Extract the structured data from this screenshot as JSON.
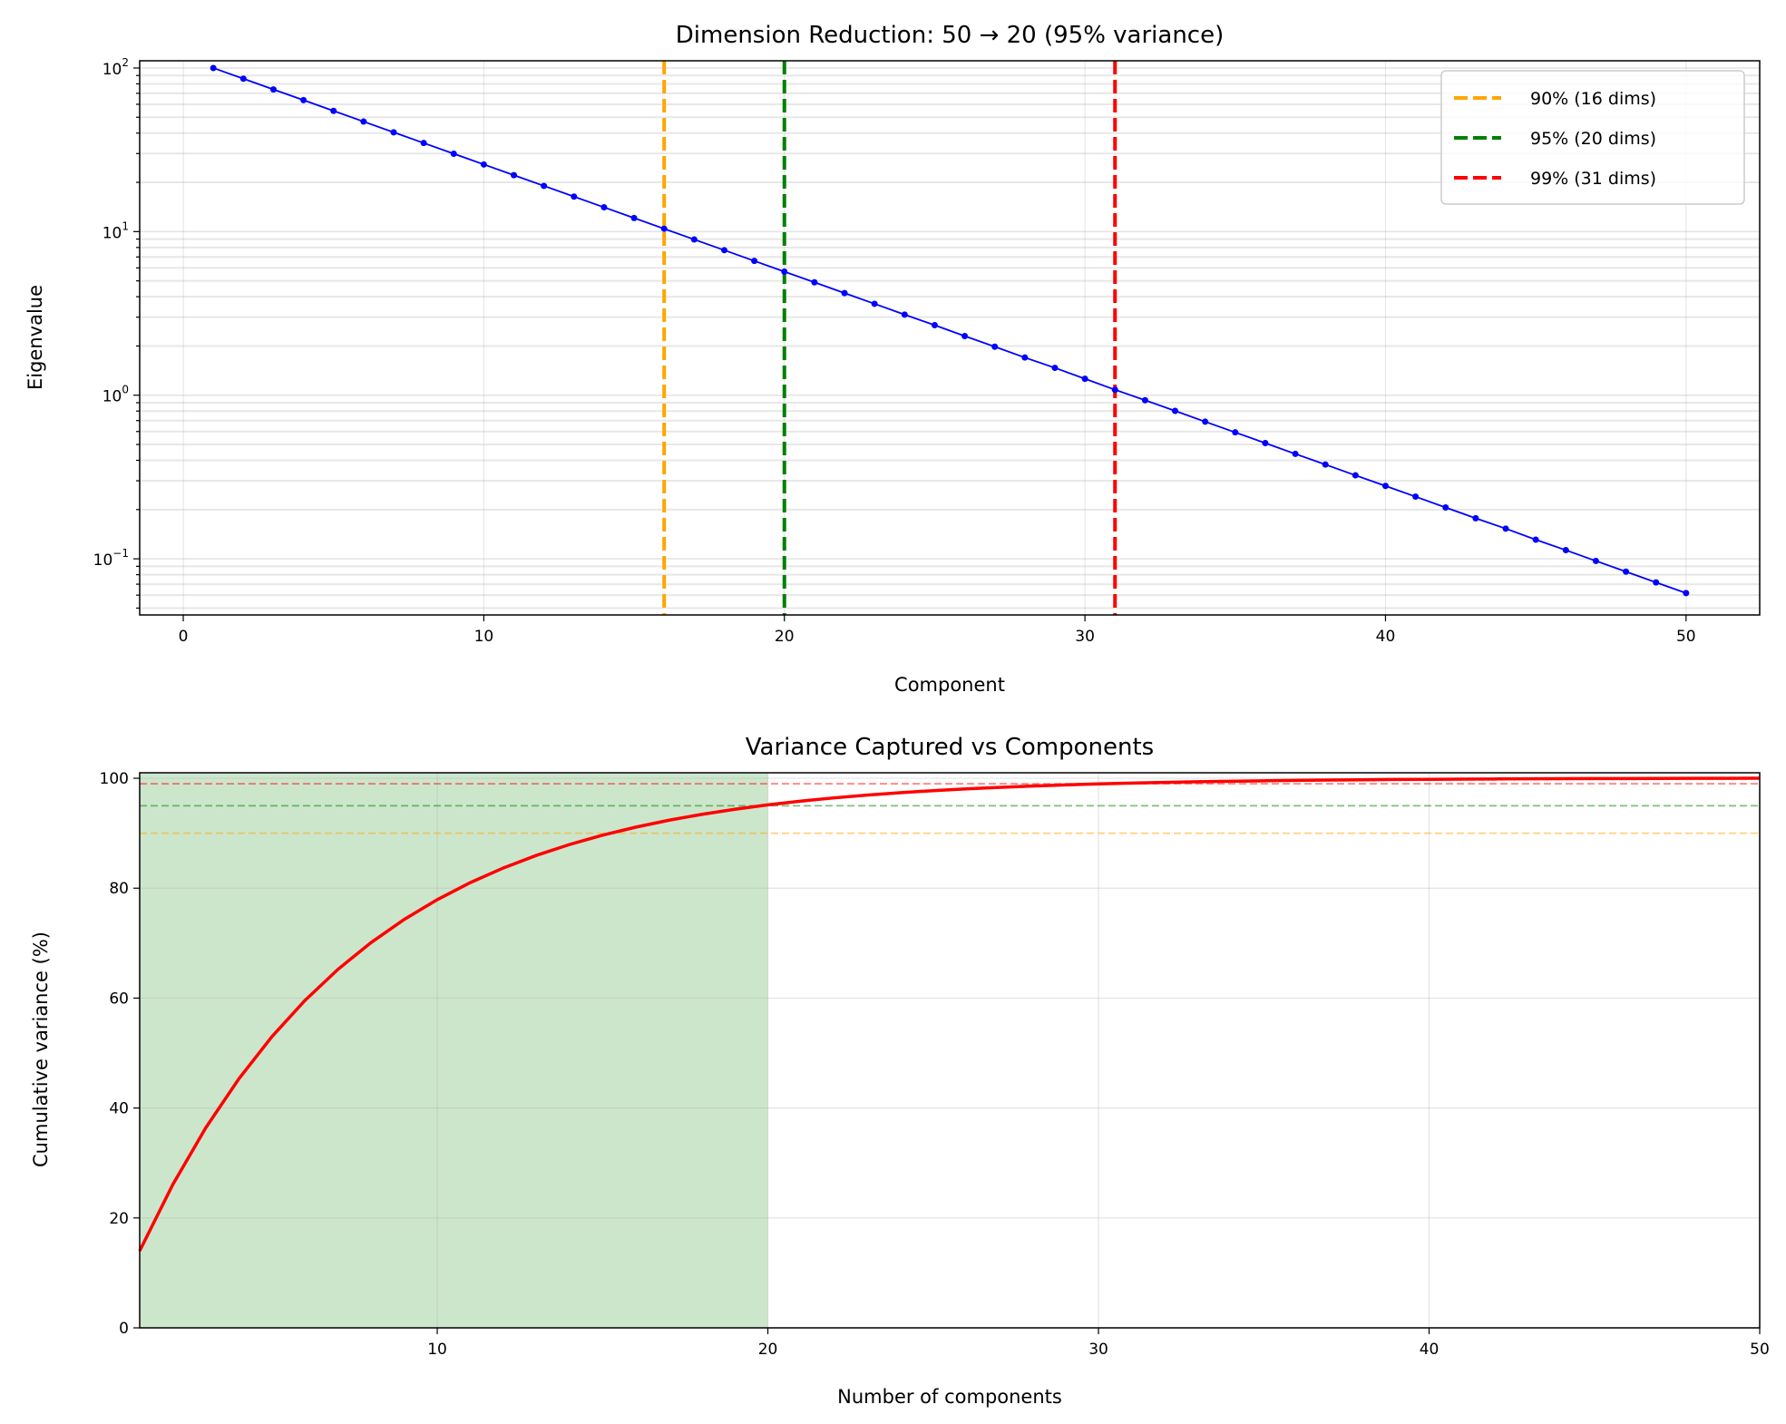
{
  "chart_data": [
    {
      "type": "line",
      "title": "Dimension Reduction: 50 → 20 (95% variance)",
      "xlabel": "Component",
      "ylabel": "Eigenvalue",
      "yscale": "log",
      "xlim": [
        -1.45,
        52.45
      ],
      "ylim": [
        0.0454,
        110.7
      ],
      "xticks": [
        0,
        10,
        20,
        30,
        40,
        50
      ],
      "yticks": [
        {
          "base": "10",
          "exp": "2",
          "value": 100
        },
        {
          "base": "10",
          "exp": "1",
          "value": 10
        },
        {
          "base": "10",
          "exp": "0",
          "value": 1
        },
        {
          "base": "10",
          "exp": "−1",
          "value": 0.1
        }
      ],
      "grid": true,
      "x": [
        1,
        2,
        3,
        4,
        5,
        6,
        7,
        8,
        9,
        10,
        11,
        12,
        13,
        14,
        15,
        16,
        17,
        18,
        19,
        20,
        21,
        22,
        23,
        24,
        25,
        26,
        27,
        28,
        29,
        30,
        31,
        32,
        33,
        34,
        35,
        36,
        37,
        38,
        39,
        40,
        41,
        42,
        43,
        44,
        45,
        46,
        47,
        48,
        49,
        50
      ],
      "eigenvalues": [
        100,
        86.0,
        73.96,
        63.61,
        54.7,
        47.04,
        40.46,
        34.79,
        29.92,
        25.73,
        22.13,
        19.03,
        16.37,
        14.08,
        12.11,
        10.41,
        8.95,
        7.7,
        6.62,
        5.69,
        4.9,
        4.21,
        3.62,
        3.11,
        2.68,
        2.3,
        1.98,
        1.7,
        1.47,
        1.26,
        1.08,
        0.932,
        0.802,
        0.689,
        0.593,
        0.51,
        0.438,
        0.377,
        0.324,
        0.279,
        0.24,
        0.206,
        0.177,
        0.153,
        0.131,
        0.113,
        0.0971,
        0.0835,
        0.0718,
        0.0618
      ],
      "series_color": "#0000ff",
      "vlines": [
        {
          "x": 16,
          "label": "90% (16 dims)",
          "color": "#ffa500"
        },
        {
          "x": 20,
          "label": "95% (20 dims)",
          "color": "#008000"
        },
        {
          "x": 31,
          "label": "99% (31 dims)",
          "color": "#ff0000"
        }
      ],
      "legend_position": "top-right"
    },
    {
      "type": "line",
      "title": "Variance Captured vs Components",
      "xlabel": "Number of components",
      "ylabel": "Cumulative variance (%)",
      "xlim": [
        1,
        50
      ],
      "ylim": [
        0,
        101
      ],
      "xticks": [
        10,
        20,
        30,
        40,
        50
      ],
      "yticks": [
        0,
        20,
        40,
        60,
        80,
        100
      ],
      "grid": true,
      "series": "cumulative percentage of eigenvalues (first value ~14%, 95% at 20 components)",
      "series_color": "#ff0000",
      "shaded_region": {
        "x": [
          1,
          20
        ],
        "color": "#008000",
        "alpha": 0.2
      },
      "hlines": [
        {
          "y": 90,
          "color": "#ffa500"
        },
        {
          "y": 95,
          "color": "#008000"
        },
        {
          "y": 99,
          "color": "#ff0000"
        }
      ]
    }
  ]
}
